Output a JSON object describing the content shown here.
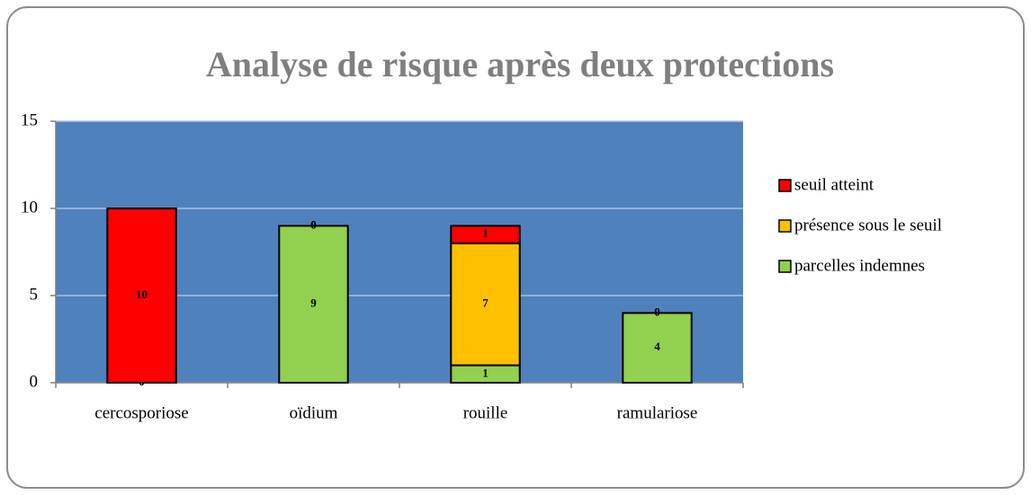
{
  "chart_data": {
    "type": "stacked-bar",
    "title": "Analyse de risque après deux protections",
    "categories": [
      "cercosporiose",
      "oïdium",
      "rouille",
      "ramulariose"
    ],
    "series": [
      {
        "name": "parcelles indemnes",
        "color": "#92d050",
        "values": [
          0,
          9,
          1,
          4
        ]
      },
      {
        "name": "présence sous le seuil",
        "color": "#ffc000",
        "values": [
          0,
          0,
          7,
          0
        ]
      },
      {
        "name": "seuil atteint",
        "color": "#ff0000",
        "values": [
          10,
          0,
          1,
          0
        ]
      }
    ],
    "ylim": [
      0,
      15
    ],
    "yticks": [
      0,
      5,
      10,
      15
    ],
    "grid": true,
    "legend": "right"
  }
}
